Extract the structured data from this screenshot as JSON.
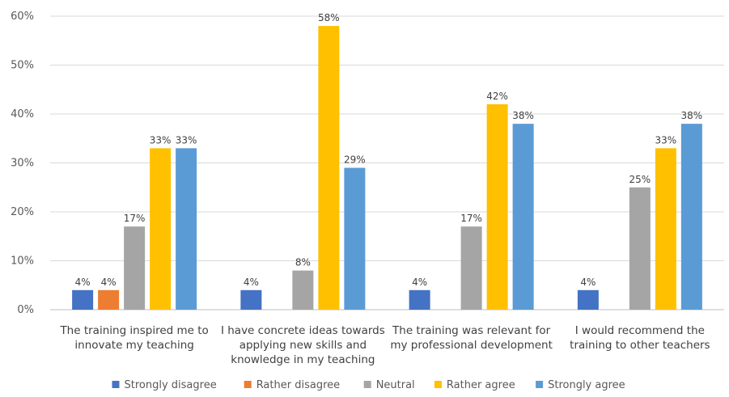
{
  "chart_data": {
    "type": "bar",
    "categories": [
      [
        "The training inspired me to",
        "innovate my teaching"
      ],
      [
        "I have concrete ideas towards",
        "applying new skills and",
        "knowledge in my teaching"
      ],
      [
        "The training was relevant for",
        "my professional development"
      ],
      [
        "I would recommend the",
        "training to other teachers"
      ]
    ],
    "series": [
      {
        "name": "Strongly disagree",
        "color": "#4472c4",
        "values": [
          4,
          4,
          4,
          4
        ]
      },
      {
        "name": "Rather disagree",
        "color": "#ed7d31",
        "values": [
          4,
          null,
          null,
          null
        ]
      },
      {
        "name": "Neutral",
        "color": "#a5a5a5",
        "values": [
          17,
          8,
          17,
          25
        ]
      },
      {
        "name": "Rather agree",
        "color": "#ffc000",
        "values": [
          33,
          58,
          42,
          33
        ]
      },
      {
        "name": "Strongly agree",
        "color": "#5b9bd5",
        "values": [
          33,
          29,
          38,
          38
        ]
      }
    ],
    "y_ticks": [
      "0%",
      "10%",
      "20%",
      "30%",
      "40%",
      "50%",
      "60%"
    ],
    "ylim": [
      0,
      60
    ],
    "value_suffix": "%",
    "grid": true,
    "legend_position": "bottom"
  }
}
